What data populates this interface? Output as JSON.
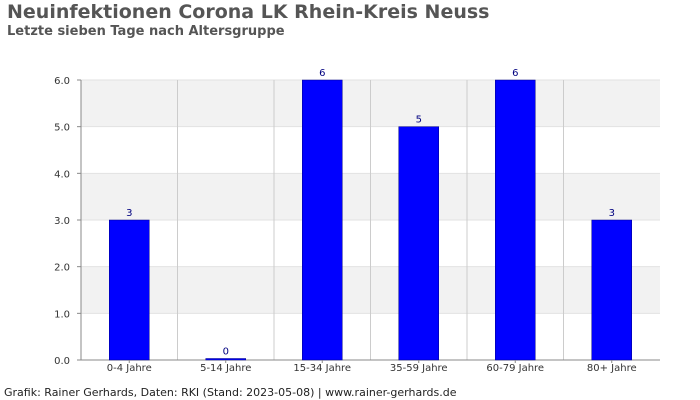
{
  "title": "Neuinfektionen Corona LK Rhein-Kreis Neuss",
  "subtitle": "Letzte sieben Tage nach Altersgruppe",
  "footer": "Grafik: Rainer Gerhards, Daten: RKI (Stand: 2023-05-08) | www.rainer-gerhards.de",
  "colors": {
    "bar": "#0000ff",
    "value_label": "#000080",
    "band": "#f2f2f2",
    "grid": "#cccccc",
    "axis": "#888888"
  },
  "chart_data": {
    "type": "bar",
    "title": "Neuinfektionen Corona LK Rhein-Kreis Neuss",
    "subtitle": "Letzte sieben Tage nach Altersgruppe",
    "categories": [
      "0-4 Jahre",
      "5-14 Jahre",
      "15-34 Jahre",
      "35-59 Jahre",
      "60-79 Jahre",
      "80+ Jahre"
    ],
    "values": [
      3,
      0,
      6,
      5,
      6,
      3
    ],
    "data_labels": [
      "3",
      "0",
      "6",
      "5",
      "6",
      "3"
    ],
    "ylim": [
      0,
      6
    ],
    "yticks": [
      0,
      1,
      2,
      3,
      4,
      5,
      6
    ],
    "ytick_labels": [
      "0.0",
      "1.0",
      "2.0",
      "3.0",
      "4.0",
      "5.0",
      "6.0"
    ],
    "xlabel": "",
    "ylabel": "",
    "grid": true,
    "legend": false
  }
}
